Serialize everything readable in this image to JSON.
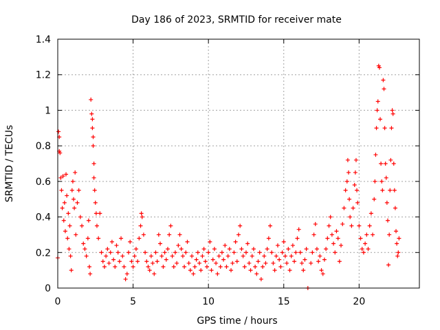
{
  "chart_data": {
    "type": "scatter",
    "title": "Day 186 of 2023, SRMTID for receiver mate",
    "xlabel": "GPS time / hours",
    "ylabel": "SRMTID / TECUs",
    "xlim": [
      0,
      24
    ],
    "ylim": [
      0,
      1.4
    ],
    "xticks": [
      0,
      5,
      10,
      15,
      20
    ],
    "yticks": [
      0,
      0.2,
      0.4,
      0.6,
      0.8,
      1,
      1.2,
      1.4
    ],
    "ytick_labels": [
      "0",
      "0.2",
      "0.4",
      "0.6",
      "0.8",
      "1",
      "1.2",
      "1.4"
    ],
    "grid": true,
    "marker": "+",
    "color": "#ff0000",
    "series": [
      {
        "name": "SRMTID",
        "points": [
          [
            0.0,
            0.17
          ],
          [
            0.05,
            0.88
          ],
          [
            0.1,
            0.85
          ],
          [
            0.1,
            0.77
          ],
          [
            0.15,
            0.76
          ],
          [
            0.2,
            0.62
          ],
          [
            0.25,
            0.55
          ],
          [
            0.3,
            0.45
          ],
          [
            0.35,
            0.63
          ],
          [
            0.4,
            0.38
          ],
          [
            0.45,
            0.48
          ],
          [
            0.5,
            0.32
          ],
          [
            0.55,
            0.64
          ],
          [
            0.6,
            0.52
          ],
          [
            0.65,
            0.28
          ],
          [
            0.7,
            0.42
          ],
          [
            0.75,
            0.22
          ],
          [
            0.8,
            0.35
          ],
          [
            0.85,
            0.18
          ],
          [
            0.9,
            0.1
          ],
          [
            0.95,
            0.55
          ],
          [
            1.0,
            0.6
          ],
          [
            1.05,
            0.5
          ],
          [
            1.1,
            0.45
          ],
          [
            1.15,
            0.65
          ],
          [
            1.2,
            0.3
          ],
          [
            1.3,
            0.48
          ],
          [
            1.4,
            0.55
          ],
          [
            1.5,
            0.4
          ],
          [
            1.6,
            0.35
          ],
          [
            1.7,
            0.25
          ],
          [
            1.8,
            0.22
          ],
          [
            1.9,
            0.18
          ],
          [
            2.0,
            0.28
          ],
          [
            2.05,
            0.38
          ],
          [
            2.1,
            0.12
          ],
          [
            2.15,
            0.08
          ],
          [
            2.2,
            1.06
          ],
          [
            2.25,
            0.98
          ],
          [
            2.3,
            0.95
          ],
          [
            2.3,
            0.9
          ],
          [
            2.35,
            0.85
          ],
          [
            2.35,
            0.8
          ],
          [
            2.4,
            0.7
          ],
          [
            2.4,
            0.62
          ],
          [
            2.45,
            0.55
          ],
          [
            2.5,
            0.48
          ],
          [
            2.55,
            0.42
          ],
          [
            2.6,
            0.35
          ],
          [
            2.7,
            0.28
          ],
          [
            2.8,
            0.42
          ],
          [
            2.9,
            0.2
          ],
          [
            3.0,
            0.15
          ],
          [
            3.1,
            0.12
          ],
          [
            3.2,
            0.18
          ],
          [
            3.3,
            0.22
          ],
          [
            3.4,
            0.14
          ],
          [
            3.5,
            0.2
          ],
          [
            3.6,
            0.26
          ],
          [
            3.7,
            0.16
          ],
          [
            3.8,
            0.12
          ],
          [
            3.9,
            0.24
          ],
          [
            4.0,
            0.2
          ],
          [
            4.1,
            0.15
          ],
          [
            4.2,
            0.28
          ],
          [
            4.3,
            0.18
          ],
          [
            4.4,
            0.12
          ],
          [
            4.5,
            0.05
          ],
          [
            4.6,
            0.08
          ],
          [
            4.7,
            0.2
          ],
          [
            4.8,
            0.26
          ],
          [
            4.9,
            0.15
          ],
          [
            5.0,
            0.12
          ],
          [
            5.1,
            0.18
          ],
          [
            5.2,
            0.22
          ],
          [
            5.3,
            0.15
          ],
          [
            5.4,
            0.28
          ],
          [
            5.5,
            0.35
          ],
          [
            5.55,
            0.42
          ],
          [
            5.6,
            0.4
          ],
          [
            5.7,
            0.3
          ],
          [
            5.8,
            0.2
          ],
          [
            5.9,
            0.15
          ],
          [
            6.0,
            0.12
          ],
          [
            6.1,
            0.1
          ],
          [
            6.2,
            0.18
          ],
          [
            6.3,
            0.14
          ],
          [
            6.4,
            0.08
          ],
          [
            6.5,
            0.2
          ],
          [
            6.6,
            0.15
          ],
          [
            6.7,
            0.3
          ],
          [
            6.8,
            0.25
          ],
          [
            6.9,
            0.18
          ],
          [
            7.0,
            0.12
          ],
          [
            7.1,
            0.2
          ],
          [
            7.2,
            0.16
          ],
          [
            7.3,
            0.22
          ],
          [
            7.4,
            0.3
          ],
          [
            7.5,
            0.35
          ],
          [
            7.6,
            0.18
          ],
          [
            7.7,
            0.12
          ],
          [
            7.8,
            0.2
          ],
          [
            7.9,
            0.14
          ],
          [
            8.0,
            0.24
          ],
          [
            8.1,
            0.3
          ],
          [
            8.2,
            0.22
          ],
          [
            8.3,
            0.18
          ],
          [
            8.4,
            0.12
          ],
          [
            8.5,
            0.2
          ],
          [
            8.6,
            0.26
          ],
          [
            8.7,
            0.14
          ],
          [
            8.8,
            0.1
          ],
          [
            8.9,
            0.18
          ],
          [
            9.0,
            0.08
          ],
          [
            9.1,
            0.12
          ],
          [
            9.2,
            0.16
          ],
          [
            9.3,
            0.2
          ],
          [
            9.4,
            0.14
          ],
          [
            9.5,
            0.1
          ],
          [
            9.6,
            0.18
          ],
          [
            9.7,
            0.22
          ],
          [
            9.8,
            0.15
          ],
          [
            9.9,
            0.12
          ],
          [
            10.0,
            0.2
          ],
          [
            10.1,
            0.26
          ],
          [
            10.2,
            0.1
          ],
          [
            10.3,
            0.16
          ],
          [
            10.4,
            0.22
          ],
          [
            10.5,
            0.14
          ],
          [
            10.6,
            0.08
          ],
          [
            10.7,
            0.18
          ],
          [
            10.8,
            0.12
          ],
          [
            10.9,
            0.2
          ],
          [
            11.0,
            0.16
          ],
          [
            11.1,
            0.24
          ],
          [
            11.2,
            0.12
          ],
          [
            11.3,
            0.18
          ],
          [
            11.4,
            0.22
          ],
          [
            11.5,
            0.1
          ],
          [
            11.6,
            0.14
          ],
          [
            11.7,
            0.2
          ],
          [
            11.8,
            0.26
          ],
          [
            11.9,
            0.15
          ],
          [
            12.0,
            0.3
          ],
          [
            12.1,
            0.35
          ],
          [
            12.2,
            0.22
          ],
          [
            12.3,
            0.18
          ],
          [
            12.4,
            0.12
          ],
          [
            12.5,
            0.2
          ],
          [
            12.6,
            0.25
          ],
          [
            12.7,
            0.14
          ],
          [
            12.8,
            0.1
          ],
          [
            12.9,
            0.18
          ],
          [
            13.0,
            0.22
          ],
          [
            13.1,
            0.12
          ],
          [
            13.2,
            0.08
          ],
          [
            13.3,
            0.15
          ],
          [
            13.4,
            0.2
          ],
          [
            13.5,
            0.05
          ],
          [
            13.6,
            0.12
          ],
          [
            13.7,
            0.18
          ],
          [
            13.8,
            0.14
          ],
          [
            13.9,
            0.22
          ],
          [
            14.0,
            0.28
          ],
          [
            14.1,
            0.35
          ],
          [
            14.2,
            0.2
          ],
          [
            14.3,
            0.14
          ],
          [
            14.4,
            0.1
          ],
          [
            14.5,
            0.18
          ],
          [
            14.6,
            0.24
          ],
          [
            14.7,
            0.16
          ],
          [
            14.8,
            0.12
          ],
          [
            14.9,
            0.2
          ],
          [
            15.0,
            0.26
          ],
          [
            15.1,
            0.18
          ],
          [
            15.2,
            0.14
          ],
          [
            15.3,
            0.22
          ],
          [
            15.4,
            0.1
          ],
          [
            15.5,
            0.18
          ],
          [
            15.6,
            0.24
          ],
          [
            15.7,
            0.15
          ],
          [
            15.8,
            0.2
          ],
          [
            15.9,
            0.28
          ],
          [
            16.0,
            0.33
          ],
          [
            16.1,
            0.2
          ],
          [
            16.2,
            0.14
          ],
          [
            16.3,
            0.1
          ],
          [
            16.4,
            0.16
          ],
          [
            16.5,
            0.22
          ],
          [
            16.6,
            0.0
          ],
          [
            16.8,
            0.14
          ],
          [
            16.9,
            0.2
          ],
          [
            17.0,
            0.3
          ],
          [
            17.1,
            0.36
          ],
          [
            17.2,
            0.22
          ],
          [
            17.3,
            0.15
          ],
          [
            17.4,
            0.18
          ],
          [
            17.5,
            0.1
          ],
          [
            17.6,
            0.08
          ],
          [
            17.7,
            0.16
          ],
          [
            17.8,
            0.22
          ],
          [
            17.9,
            0.28
          ],
          [
            18.0,
            0.35
          ],
          [
            18.1,
            0.4
          ],
          [
            18.2,
            0.3
          ],
          [
            18.3,
            0.25
          ],
          [
            18.4,
            0.2
          ],
          [
            18.5,
            0.32
          ],
          [
            18.6,
            0.28
          ],
          [
            18.7,
            0.15
          ],
          [
            18.8,
            0.24
          ],
          [
            18.9,
            0.36
          ],
          [
            19.0,
            0.45
          ],
          [
            19.1,
            0.55
          ],
          [
            19.2,
            0.6
          ],
          [
            19.25,
            0.72
          ],
          [
            19.3,
            0.65
          ],
          [
            19.35,
            0.5
          ],
          [
            19.4,
            0.4
          ],
          [
            19.5,
            0.35
          ],
          [
            19.6,
            0.45
          ],
          [
            19.7,
            0.58
          ],
          [
            19.75,
            0.65
          ],
          [
            19.8,
            0.72
          ],
          [
            19.85,
            0.55
          ],
          [
            19.9,
            0.48
          ],
          [
            20.0,
            0.35
          ],
          [
            20.1,
            0.28
          ],
          [
            20.2,
            0.22
          ],
          [
            20.3,
            0.2
          ],
          [
            20.4,
            0.25
          ],
          [
            20.5,
            0.3
          ],
          [
            20.6,
            0.22
          ],
          [
            20.7,
            0.35
          ],
          [
            20.8,
            0.42
          ],
          [
            20.9,
            0.3
          ],
          [
            21.0,
            0.5
          ],
          [
            21.05,
            0.6
          ],
          [
            21.1,
            0.75
          ],
          [
            21.15,
            0.9
          ],
          [
            21.2,
            1.0
          ],
          [
            21.25,
            1.05
          ],
          [
            21.3,
            1.25
          ],
          [
            21.35,
            1.24
          ],
          [
            21.4,
            0.95
          ],
          [
            21.45,
            0.7
          ],
          [
            21.5,
            0.6
          ],
          [
            21.55,
            0.55
          ],
          [
            21.6,
            1.17
          ],
          [
            21.65,
            1.12
          ],
          [
            21.7,
            0.9
          ],
          [
            21.75,
            0.7
          ],
          [
            21.8,
            0.62
          ],
          [
            21.85,
            0.48
          ],
          [
            21.9,
            0.38
          ],
          [
            21.95,
            0.13
          ],
          [
            22.0,
            0.3
          ],
          [
            22.05,
            0.55
          ],
          [
            22.1,
            0.72
          ],
          [
            22.15,
            0.9
          ],
          [
            22.2,
            1.0
          ],
          [
            22.25,
            0.98
          ],
          [
            22.3,
            0.7
          ],
          [
            22.35,
            0.55
          ],
          [
            22.4,
            0.45
          ],
          [
            22.45,
            0.32
          ],
          [
            22.5,
            0.25
          ],
          [
            22.55,
            0.18
          ],
          [
            22.6,
            0.2
          ],
          [
            22.65,
            0.28
          ]
        ]
      }
    ]
  }
}
